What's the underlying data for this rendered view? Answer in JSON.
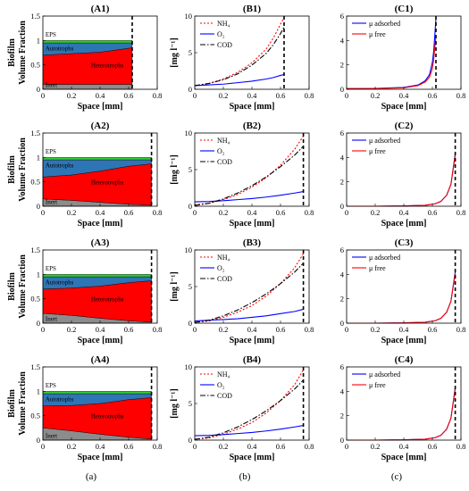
{
  "column_labels": [
    "(a)",
    "(b)",
    "(c)"
  ],
  "colors": {
    "inert": "#8c8c8c",
    "heterotrophs": "#ff0000",
    "autotrophs": "#2e75b6",
    "eps": "#33cc33",
    "nh4": "#ff0000",
    "o2": "#0000ff",
    "cod": "#000000",
    "mu_adsorbed": "#0000ff",
    "mu_free": "#ff0000"
  },
  "chart_data": [
    {
      "type": "area",
      "title": "(A1)",
      "xlabel": "Space [mm]",
      "ylabel": [
        "Biofilm",
        "Volume Fraction"
      ],
      "xlim": [
        0,
        0.8
      ],
      "ylim": [
        0,
        1.5
      ],
      "xticks": [
        0,
        0.2,
        0.4,
        0.6,
        0.8
      ],
      "yticks": [
        0,
        0.5,
        1,
        1.5
      ],
      "x": [
        0,
        0.2,
        0.4,
        0.625
      ],
      "layers": [
        {
          "name": "Inert",
          "values": [
            0.1,
            0.1,
            0.1,
            0.1
          ]
        },
        {
          "name": "Heterotrophs",
          "values": [
            0.6,
            0.63,
            0.66,
            0.75
          ]
        },
        {
          "name": "Autotrophs",
          "values": [
            0.25,
            0.22,
            0.19,
            0.1
          ]
        },
        {
          "name": "EPS",
          "values": [
            0.05,
            0.05,
            0.05,
            0.05
          ]
        }
      ],
      "layer_labels": [
        "Inert",
        "Heterotrophs",
        "Autotrophs",
        "EPS"
      ],
      "boundary_x": 0.625
    },
    {
      "type": "line",
      "title": "(B1)",
      "xlabel": "Space [mm]",
      "ylabel": "[mg l⁻¹]",
      "xlim": [
        0,
        0.8
      ],
      "ylim": [
        0,
        10
      ],
      "xticks": [
        0,
        0.2,
        0.4,
        0.6,
        0.8
      ],
      "yticks": [
        0,
        5,
        10
      ],
      "x": [
        0,
        0.1,
        0.2,
        0.3,
        0.4,
        0.5,
        0.55,
        0.6,
        0.625
      ],
      "series": [
        {
          "name": "NH₄",
          "values": [
            0.5,
            0.8,
            1.4,
            2.3,
            3.6,
            5.5,
            7.0,
            8.9,
            9.8
          ]
        },
        {
          "name": "O₂",
          "values": [
            0.5,
            0.6,
            0.7,
            0.9,
            1.1,
            1.4,
            1.6,
            1.9,
            2.0
          ]
        },
        {
          "name": "COD",
          "values": [
            0.5,
            0.8,
            1.3,
            2.1,
            3.3,
            4.9,
            6.1,
            7.6,
            8.5
          ]
        }
      ],
      "boundary_x": 0.625
    },
    {
      "type": "line",
      "title": "(C1)",
      "xlabel": "Space [mm]",
      "xlim": [
        0,
        0.8
      ],
      "ylim": [
        0,
        6
      ],
      "xticks": [
        0,
        0.2,
        0.4,
        0.6,
        0.8
      ],
      "yticks": [
        0,
        2,
        4,
        6
      ],
      "x": [
        0,
        0.2,
        0.4,
        0.5,
        0.55,
        0.58,
        0.6,
        0.61,
        0.625
      ],
      "series": [
        {
          "name": "μ adsorbed",
          "values": [
            0.05,
            0.07,
            0.15,
            0.35,
            0.7,
            1.2,
            2.2,
            3.2,
            5.8
          ]
        },
        {
          "name": "μ free",
          "values": [
            0.05,
            0.06,
            0.12,
            0.3,
            0.6,
            1.0,
            1.7,
            2.5,
            4.4
          ]
        }
      ],
      "boundary_x": 0.625
    },
    {
      "type": "area",
      "title": "(A2)",
      "xlabel": "Space [mm]",
      "ylabel": [
        "Biofilm",
        "Volume Fraction"
      ],
      "xlim": [
        0,
        0.8
      ],
      "ylim": [
        0,
        1.5
      ],
      "xticks": [
        0,
        0.2,
        0.4,
        0.6,
        0.8
      ],
      "yticks": [
        0,
        0.5,
        1,
        1.5
      ],
      "x": [
        0,
        0.2,
        0.4,
        0.6,
        0.76
      ],
      "layers": [
        {
          "name": "Inert",
          "values": [
            0.15,
            0.12,
            0.08,
            0.04,
            0.02
          ]
        },
        {
          "name": "Heterotrophs",
          "values": [
            0.45,
            0.52,
            0.64,
            0.78,
            0.85
          ]
        },
        {
          "name": "Autotrophs",
          "values": [
            0.35,
            0.31,
            0.23,
            0.13,
            0.08
          ]
        },
        {
          "name": "EPS",
          "values": [
            0.05,
            0.05,
            0.05,
            0.05,
            0.05
          ]
        }
      ],
      "layer_labels": [
        "Inert",
        "Heterotrophs",
        "Autotrophs",
        "EPS"
      ],
      "boundary_x": 0.76
    },
    {
      "type": "line",
      "title": "(B2)",
      "xlabel": "Space [mm]",
      "ylabel": "[mg l⁻¹]",
      "xlim": [
        0,
        0.8
      ],
      "ylim": [
        0,
        10
      ],
      "xticks": [
        0,
        0.2,
        0.4,
        0.6,
        0.8
      ],
      "yticks": [
        0,
        5,
        10
      ],
      "x": [
        0,
        0.1,
        0.2,
        0.3,
        0.4,
        0.5,
        0.6,
        0.7,
        0.76
      ],
      "series": [
        {
          "name": "NH₄",
          "values": [
            0.2,
            0.4,
            0.9,
            1.6,
            2.6,
            3.9,
            5.6,
            7.8,
            9.6
          ]
        },
        {
          "name": "O₂",
          "values": [
            0.6,
            0.65,
            0.75,
            0.9,
            1.05,
            1.25,
            1.5,
            1.8,
            2.0
          ]
        },
        {
          "name": "COD",
          "values": [
            0.1,
            0.4,
            1.0,
            1.8,
            2.8,
            4.0,
            5.4,
            7.0,
            8.2
          ]
        }
      ],
      "boundary_x": 0.76
    },
    {
      "type": "line",
      "title": "(C2)",
      "xlabel": "Space [mm]",
      "xlim": [
        0,
        0.8
      ],
      "ylim": [
        0,
        6
      ],
      "xticks": [
        0,
        0.2,
        0.4,
        0.6,
        0.8
      ],
      "yticks": [
        0,
        2,
        4,
        6
      ],
      "x": [
        0,
        0.2,
        0.4,
        0.55,
        0.62,
        0.66,
        0.7,
        0.73,
        0.76
      ],
      "series": [
        {
          "name": "μ adsorbed",
          "values": [
            0.0,
            0.0,
            0.02,
            0.08,
            0.2,
            0.4,
            0.9,
            1.8,
            4.3
          ]
        },
        {
          "name": "μ free",
          "values": [
            0.0,
            0.0,
            0.02,
            0.08,
            0.2,
            0.4,
            0.9,
            1.8,
            4.2
          ]
        }
      ],
      "boundary_x": 0.76
    },
    {
      "type": "area",
      "title": "(A3)",
      "xlabel": "Space [mm]",
      "ylabel": [
        "Biofilm",
        "Volume Fraction"
      ],
      "xlim": [
        0,
        0.8
      ],
      "ylim": [
        0,
        1.5
      ],
      "xticks": [
        0,
        0.2,
        0.4,
        0.6,
        0.8
      ],
      "yticks": [
        0,
        0.5,
        1,
        1.5
      ],
      "x": [
        0,
        0.2,
        0.4,
        0.6,
        0.76
      ],
      "layers": [
        {
          "name": "Inert",
          "values": [
            0.2,
            0.16,
            0.1,
            0.05,
            0.02
          ]
        },
        {
          "name": "Heterotrophs",
          "values": [
            0.5,
            0.56,
            0.66,
            0.78,
            0.85
          ]
        },
        {
          "name": "Autotrophs",
          "values": [
            0.25,
            0.23,
            0.19,
            0.12,
            0.08
          ]
        },
        {
          "name": "EPS",
          "values": [
            0.05,
            0.05,
            0.05,
            0.05,
            0.05
          ]
        }
      ],
      "layer_labels": [
        "Inert",
        "Heterotrophs",
        "Autotrophs",
        "EPS"
      ],
      "boundary_x": 0.76
    },
    {
      "type": "line",
      "title": "(B3)",
      "xlabel": "Space [mm]",
      "ylabel": "[mg l⁻¹]",
      "xlim": [
        0,
        0.8
      ],
      "ylim": [
        0,
        10
      ],
      "xticks": [
        0,
        0.2,
        0.4,
        0.6,
        0.8
      ],
      "yticks": [
        0,
        5,
        10
      ],
      "x": [
        0,
        0.1,
        0.2,
        0.3,
        0.4,
        0.5,
        0.6,
        0.7,
        0.76
      ],
      "series": [
        {
          "name": "NH₄",
          "values": [
            0.1,
            0.3,
            0.8,
            1.5,
            2.4,
            3.7,
            5.4,
            7.6,
            9.5
          ]
        },
        {
          "name": "O₂",
          "values": [
            0.3,
            0.4,
            0.5,
            0.6,
            0.8,
            1.0,
            1.3,
            1.6,
            1.9
          ]
        },
        {
          "name": "COD",
          "values": [
            0.1,
            0.4,
            1.0,
            1.8,
            2.8,
            4.0,
            5.4,
            7.0,
            8.2
          ]
        }
      ],
      "boundary_x": 0.76
    },
    {
      "type": "line",
      "title": "(C3)",
      "xlabel": "Space [mm]",
      "xlim": [
        0,
        0.8
      ],
      "ylim": [
        0,
        6
      ],
      "xticks": [
        0,
        0.2,
        0.4,
        0.6,
        0.8
      ],
      "yticks": [
        0,
        2,
        4,
        6
      ],
      "x": [
        0,
        0.2,
        0.4,
        0.55,
        0.62,
        0.66,
        0.7,
        0.73,
        0.76
      ],
      "series": [
        {
          "name": "μ adsorbed",
          "values": [
            0.0,
            0.0,
            0.02,
            0.08,
            0.2,
            0.4,
            0.9,
            1.8,
            4.2
          ]
        },
        {
          "name": "μ free",
          "values": [
            0.0,
            0.0,
            0.02,
            0.08,
            0.2,
            0.4,
            0.9,
            1.8,
            4.1
          ]
        }
      ],
      "boundary_x": 0.76
    },
    {
      "type": "area",
      "title": "(A4)",
      "xlabel": "Space [mm]",
      "ylabel": [
        "Biofilm",
        "Volume Fraction"
      ],
      "xlim": [
        0,
        0.8
      ],
      "ylim": [
        0,
        1.5
      ],
      "xticks": [
        0,
        0.2,
        0.4,
        0.6,
        0.8
      ],
      "yticks": [
        0,
        0.5,
        1,
        1.5
      ],
      "x": [
        0,
        0.2,
        0.4,
        0.6,
        0.76
      ],
      "layers": [
        {
          "name": "Inert",
          "values": [
            0.25,
            0.19,
            0.12,
            0.06,
            0.02
          ]
        },
        {
          "name": "Heterotrophs",
          "values": [
            0.45,
            0.52,
            0.63,
            0.77,
            0.85
          ]
        },
        {
          "name": "Autotrophs",
          "values": [
            0.25,
            0.24,
            0.2,
            0.12,
            0.08
          ]
        },
        {
          "name": "EPS",
          "values": [
            0.05,
            0.05,
            0.05,
            0.05,
            0.05
          ]
        }
      ],
      "layer_labels": [
        "Inert",
        "Heterotrophs",
        "Autotrophs",
        "EPS"
      ],
      "boundary_x": 0.76
    },
    {
      "type": "line",
      "title": "(B4)",
      "xlabel": "Space [mm]",
      "ylabel": "[mg l⁻¹]",
      "xlim": [
        0,
        0.8
      ],
      "ylim": [
        0,
        10
      ],
      "xticks": [
        0,
        0.2,
        0.4,
        0.6,
        0.8
      ],
      "yticks": [
        0,
        5,
        10
      ],
      "x": [
        0,
        0.1,
        0.2,
        0.3,
        0.4,
        0.5,
        0.6,
        0.7,
        0.76
      ],
      "series": [
        {
          "name": "NH₄",
          "values": [
            0.1,
            0.3,
            0.8,
            1.5,
            2.4,
            3.7,
            5.4,
            7.6,
            9.6
          ]
        },
        {
          "name": "O₂",
          "values": [
            0.6,
            0.65,
            0.75,
            0.9,
            1.05,
            1.25,
            1.5,
            1.8,
            2.0
          ]
        },
        {
          "name": "COD",
          "values": [
            0.1,
            0.4,
            1.0,
            1.8,
            2.8,
            4.0,
            5.4,
            7.0,
            8.2
          ]
        }
      ],
      "boundary_x": 0.76
    },
    {
      "type": "line",
      "title": "(C4)",
      "xlabel": "Space [mm]",
      "xlim": [
        0,
        0.8
      ],
      "ylim": [
        0,
        6
      ],
      "xticks": [
        0,
        0.2,
        0.4,
        0.6,
        0.8
      ],
      "yticks": [
        0,
        2,
        4,
        6
      ],
      "x": [
        0,
        0.2,
        0.4,
        0.55,
        0.62,
        0.66,
        0.7,
        0.73,
        0.76
      ],
      "series": [
        {
          "name": "μ adsorbed",
          "values": [
            0.0,
            0.0,
            0.02,
            0.08,
            0.2,
            0.4,
            0.9,
            1.8,
            4.3
          ]
        },
        {
          "name": "μ free",
          "values": [
            0.0,
            0.0,
            0.02,
            0.08,
            0.2,
            0.4,
            0.9,
            1.8,
            4.2
          ]
        }
      ],
      "boundary_x": 0.76
    }
  ]
}
